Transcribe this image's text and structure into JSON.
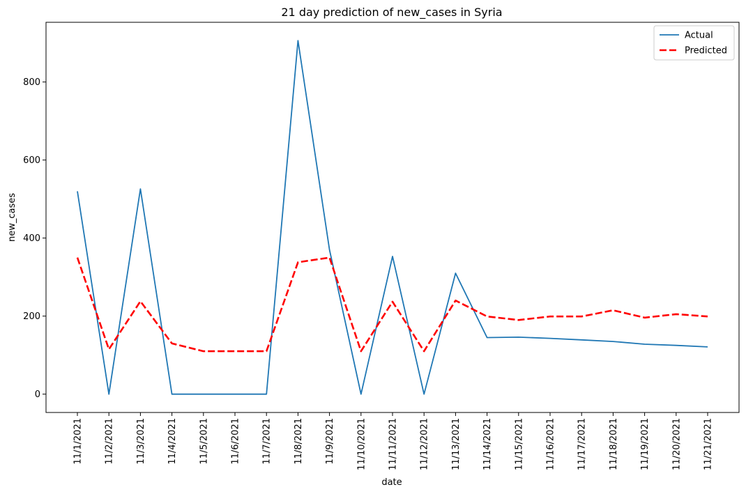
{
  "chart_data": {
    "type": "line",
    "title": "21 day prediction of new_cases in Syria",
    "xlabel": "date",
    "ylabel": "new_cases",
    "categories": [
      "11/1/2021",
      "11/2/2021",
      "11/3/2021",
      "11/4/2021",
      "11/5/2021",
      "11/6/2021",
      "11/7/2021",
      "11/8/2021",
      "11/9/2021",
      "11/10/2021",
      "11/11/2021",
      "11/12/2021",
      "11/13/2021",
      "11/14/2021",
      "11/15/2021",
      "11/16/2021",
      "11/17/2021",
      "11/18/2021",
      "11/19/2021",
      "11/20/2021",
      "11/21/2021"
    ],
    "ylim": [
      -47,
      953
    ],
    "yticks": [
      0,
      200,
      400,
      600,
      800
    ],
    "grid": false,
    "legend_position": "upper-right",
    "series": [
      {
        "name": "Actual",
        "color": "#1f77b4",
        "style": "solid",
        "values": [
          520,
          0,
          526,
          0,
          0,
          0,
          0,
          906,
          370,
          0,
          353,
          0,
          310,
          145,
          146,
          143,
          139,
          135,
          128,
          125,
          121
        ]
      },
      {
        "name": "Predicted",
        "color": "#ff0000",
        "style": "dashed",
        "values": [
          350,
          115,
          238,
          130,
          110,
          110,
          110,
          338,
          350,
          110,
          237,
          110,
          240,
          199,
          190,
          199,
          199,
          215,
          196,
          205,
          199
        ]
      }
    ]
  }
}
